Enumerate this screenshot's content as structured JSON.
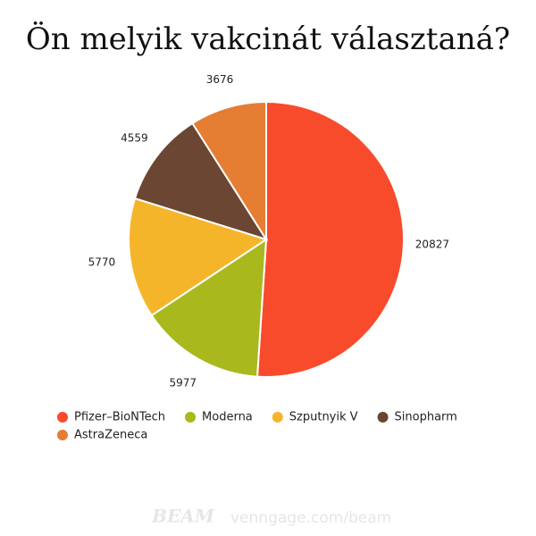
{
  "chart_data": {
    "type": "pie",
    "title": "Ön melyik vakcinát választaná?",
    "categories": [
      "Pfizer–BioNTech",
      "Moderna",
      "Szputnyik V",
      "Sinopharm",
      "AstraZeneca"
    ],
    "values": [
      20827,
      5977,
      5770,
      4559,
      3676
    ],
    "colors": [
      "#f84b2c",
      "#a9b81c",
      "#f5b52b",
      "#6b4632",
      "#e57d33"
    ],
    "legend": "bottom"
  },
  "footer": {
    "brand": "BEAM",
    "url": "venngage.com/beam"
  }
}
